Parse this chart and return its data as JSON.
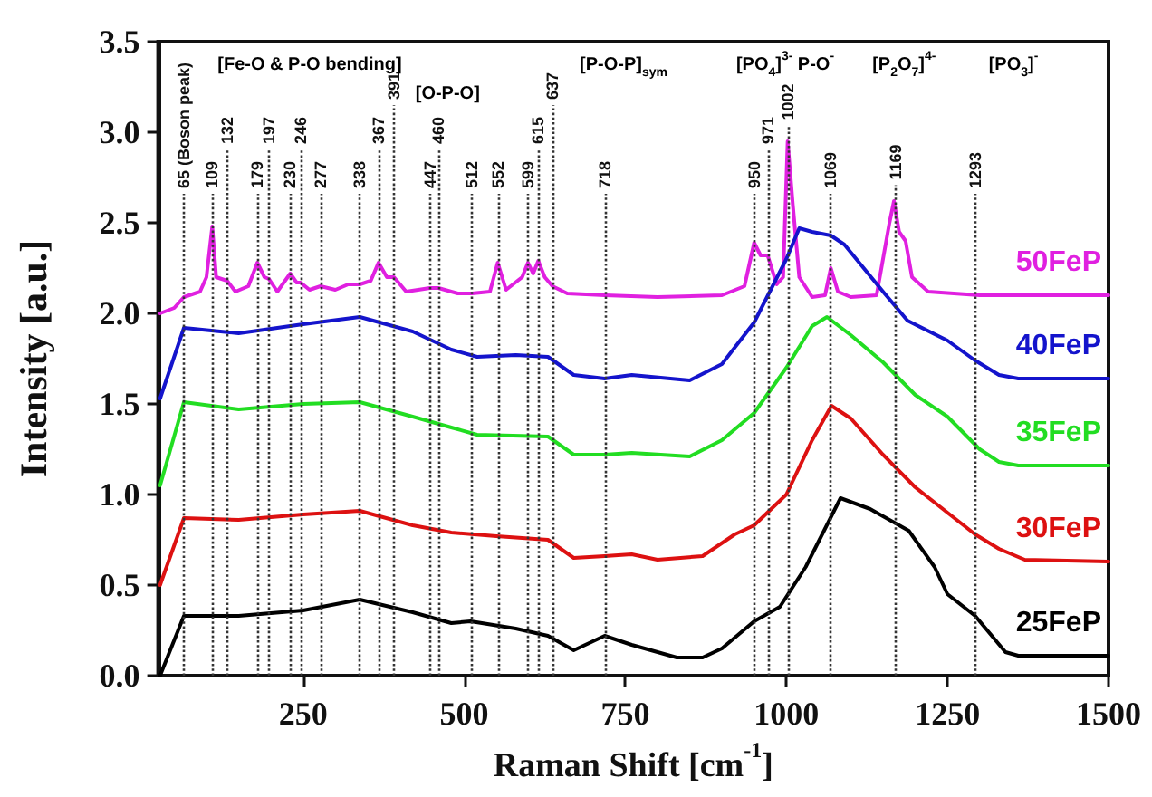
{
  "chart_data": {
    "type": "line",
    "xlabel": "Raman Shift [cm$^{-1}$]",
    "ylabel": "Intensity [a.u.]",
    "xlim": [
      25,
      1500
    ],
    "xticks": [
      250,
      500,
      750,
      1000,
      1250,
      1500
    ],
    "ylim": [
      0,
      3.5
    ],
    "yticks": [
      {
        "value": 0,
        "label": "0.0"
      },
      0.5,
      {
        "value": 1,
        "label": "1.0"
      },
      1.5,
      {
        "value": 2,
        "label": "2.0"
      },
      2.5,
      {
        "value": 3,
        "label": "3.0"
      },
      3.5
    ],
    "grid": false,
    "legend": false,
    "marker": "none",
    "line_style": "solid",
    "series": [
      {
        "name": "50FeP",
        "color": "#e020e0",
        "x": [
          28,
          50,
          65,
          90,
          100,
          109,
          115,
          132,
          145,
          165,
          179,
          190,
          197,
          210,
          230,
          240,
          246,
          260,
          277,
          300,
          320,
          338,
          355,
          367,
          380,
          391,
          410,
          447,
          460,
          490,
          512,
          540,
          552,
          565,
          590,
          599,
          607,
          615,
          625,
          637,
          660,
          718,
          800,
          900,
          935,
          950,
          960,
          971,
          985,
          995,
          1002,
          1010,
          1020,
          1040,
          1060,
          1069,
          1080,
          1100,
          1140,
          1160,
          1167,
          1175,
          1185,
          1195,
          1220,
          1300,
          1500
        ],
        "values": [
          2.0,
          2.03,
          2.09,
          2.12,
          2.2,
          2.48,
          2.2,
          2.18,
          2.12,
          2.15,
          2.28,
          2.2,
          2.19,
          2.12,
          2.22,
          2.17,
          2.17,
          2.13,
          2.15,
          2.13,
          2.16,
          2.16,
          2.18,
          2.28,
          2.2,
          2.2,
          2.12,
          2.14,
          2.14,
          2.11,
          2.11,
          2.12,
          2.28,
          2.13,
          2.2,
          2.28,
          2.22,
          2.29,
          2.2,
          2.15,
          2.11,
          2.1,
          2.09,
          2.1,
          2.15,
          2.39,
          2.32,
          2.32,
          2.16,
          2.2,
          2.95,
          2.6,
          2.2,
          2.09,
          2.1,
          2.25,
          2.12,
          2.09,
          2.1,
          2.5,
          2.62,
          2.45,
          2.4,
          2.2,
          2.12,
          2.1,
          2.1
        ]
      },
      {
        "name": "40FeP",
        "color": "#1414cc",
        "x": [
          28,
          65,
          150,
          250,
          338,
          420,
          480,
          520,
          580,
          630,
          670,
          718,
          760,
          850,
          900,
          950,
          1000,
          1020,
          1040,
          1069,
          1090,
          1120,
          1150,
          1188,
          1250,
          1293,
          1330,
          1360,
          1500
        ],
        "values": [
          1.53,
          1.92,
          1.89,
          1.94,
          1.98,
          1.9,
          1.8,
          1.76,
          1.77,
          1.76,
          1.66,
          1.64,
          1.66,
          1.63,
          1.72,
          1.95,
          2.3,
          2.47,
          2.45,
          2.43,
          2.38,
          2.25,
          2.12,
          1.96,
          1.85,
          1.74,
          1.66,
          1.64,
          1.64
        ]
      },
      {
        "name": "35FeP",
        "color": "#22dd22",
        "x": [
          28,
          65,
          150,
          250,
          338,
          420,
          480,
          520,
          630,
          670,
          718,
          760,
          850,
          900,
          950,
          1000,
          1040,
          1063,
          1100,
          1150,
          1200,
          1250,
          1300,
          1330,
          1360,
          1500
        ],
        "values": [
          1.05,
          1.51,
          1.47,
          1.5,
          1.51,
          1.43,
          1.37,
          1.33,
          1.32,
          1.22,
          1.22,
          1.23,
          1.21,
          1.3,
          1.45,
          1.7,
          1.93,
          1.98,
          1.88,
          1.73,
          1.55,
          1.43,
          1.25,
          1.18,
          1.16,
          1.16
        ]
      },
      {
        "name": "30FeP",
        "color": "#dd1111",
        "x": [
          28,
          65,
          150,
          250,
          338,
          420,
          480,
          550,
          630,
          670,
          718,
          760,
          800,
          870,
          920,
          950,
          1000,
          1040,
          1070,
          1100,
          1150,
          1200,
          1250,
          1293,
          1330,
          1370,
          1500
        ],
        "values": [
          0.5,
          0.87,
          0.86,
          0.89,
          0.91,
          0.83,
          0.79,
          0.77,
          0.75,
          0.65,
          0.66,
          0.67,
          0.64,
          0.66,
          0.78,
          0.83,
          1.0,
          1.3,
          1.49,
          1.42,
          1.22,
          1.04,
          0.9,
          0.78,
          0.7,
          0.64,
          0.63
        ]
      },
      {
        "name": "25FeP",
        "color": "#000000",
        "x": [
          28,
          65,
          150,
          250,
          338,
          420,
          480,
          510,
          580,
          630,
          670,
          718,
          760,
          830,
          870,
          900,
          950,
          990,
          1030,
          1084,
          1130,
          1190,
          1230,
          1250,
          1293,
          1340,
          1360,
          1500
        ],
        "values": [
          0.0,
          0.33,
          0.33,
          0.36,
          0.42,
          0.35,
          0.29,
          0.3,
          0.26,
          0.22,
          0.14,
          0.22,
          0.17,
          0.1,
          0.1,
          0.15,
          0.3,
          0.38,
          0.6,
          0.98,
          0.92,
          0.8,
          0.6,
          0.45,
          0.33,
          0.13,
          0.11,
          0.11
        ]
      }
    ],
    "ref_lines": [
      {
        "axis": "x",
        "value": 65,
        "label": "65 (Boson peak)",
        "color": "#333333",
        "line_style": "dotted"
      },
      {
        "axis": "x",
        "value": 109,
        "label": "109",
        "color": "#333333",
        "line_style": "dotted"
      },
      {
        "axis": "x",
        "value": 132,
        "label": "132",
        "color": "#333333",
        "line_style": "dotted"
      },
      {
        "axis": "x",
        "value": 179,
        "label": "179",
        "color": "#333333",
        "line_style": "dotted"
      },
      {
        "axis": "x",
        "value": 197,
        "label": "197",
        "color": "#333333",
        "line_style": "dotted"
      },
      {
        "axis": "x",
        "value": 230,
        "label": "230",
        "color": "#333333",
        "line_style": "dotted"
      },
      {
        "axis": "x",
        "value": 246,
        "label": "246",
        "color": "#333333",
        "line_style": "dotted"
      },
      {
        "axis": "x",
        "value": 277,
        "label": "277",
        "color": "#333333",
        "line_style": "dotted"
      },
      {
        "axis": "x",
        "value": 338,
        "label": "338",
        "color": "#333333",
        "line_style": "dotted"
      },
      {
        "axis": "x",
        "value": 367,
        "label": "367",
        "color": "#333333",
        "line_style": "dotted"
      },
      {
        "axis": "x",
        "value": 391,
        "label": "391",
        "color": "#333333",
        "line_style": "dotted"
      },
      {
        "axis": "x",
        "value": 447,
        "label": "447",
        "color": "#333333",
        "line_style": "dotted"
      },
      {
        "axis": "x",
        "value": 460,
        "label": "460",
        "color": "#333333",
        "line_style": "dotted"
      },
      {
        "axis": "x",
        "value": 512,
        "label": "512",
        "color": "#333333",
        "line_style": "dotted"
      },
      {
        "axis": "x",
        "value": 552,
        "label": "552",
        "color": "#333333",
        "line_style": "dotted"
      },
      {
        "axis": "x",
        "value": 599,
        "label": "599",
        "color": "#333333",
        "line_style": "dotted"
      },
      {
        "axis": "x",
        "value": 615,
        "label": "615",
        "color": "#333333",
        "line_style": "dotted"
      },
      {
        "axis": "x",
        "value": 637,
        "label": "637",
        "color": "#333333",
        "line_style": "dotted"
      },
      {
        "axis": "x",
        "value": 718,
        "label": "718",
        "color": "#333333",
        "line_style": "dotted"
      },
      {
        "axis": "x",
        "value": 950,
        "label": "950",
        "color": "#333333",
        "line_style": "dotted"
      },
      {
        "axis": "x",
        "value": 971,
        "label": "971",
        "color": "#333333",
        "line_style": "dotted"
      },
      {
        "axis": "x",
        "value": 1002,
        "label": "1002",
        "color": "#333333",
        "line_style": "dotted"
      },
      {
        "axis": "x",
        "value": 1069,
        "label": "1069",
        "color": "#333333",
        "line_style": "dotted"
      },
      {
        "axis": "x",
        "value": 1169,
        "label": "1169",
        "color": "#333333",
        "line_style": "dotted"
      },
      {
        "axis": "x",
        "value": 1293,
        "label": "1293",
        "color": "#333333",
        "line_style": "dotted"
      }
    ],
    "annotations": [
      "[Fe-O & P-O bending]",
      "[O-P-O]",
      "[P-O-P]$_{sym}$",
      "[PO$_{4}$]$^{3-}$ P-O$^{-}$",
      "[P$_{2}$O$_{7}$]$^{4-}$",
      "[PO$_{3}$]$^{-}$"
    ]
  }
}
